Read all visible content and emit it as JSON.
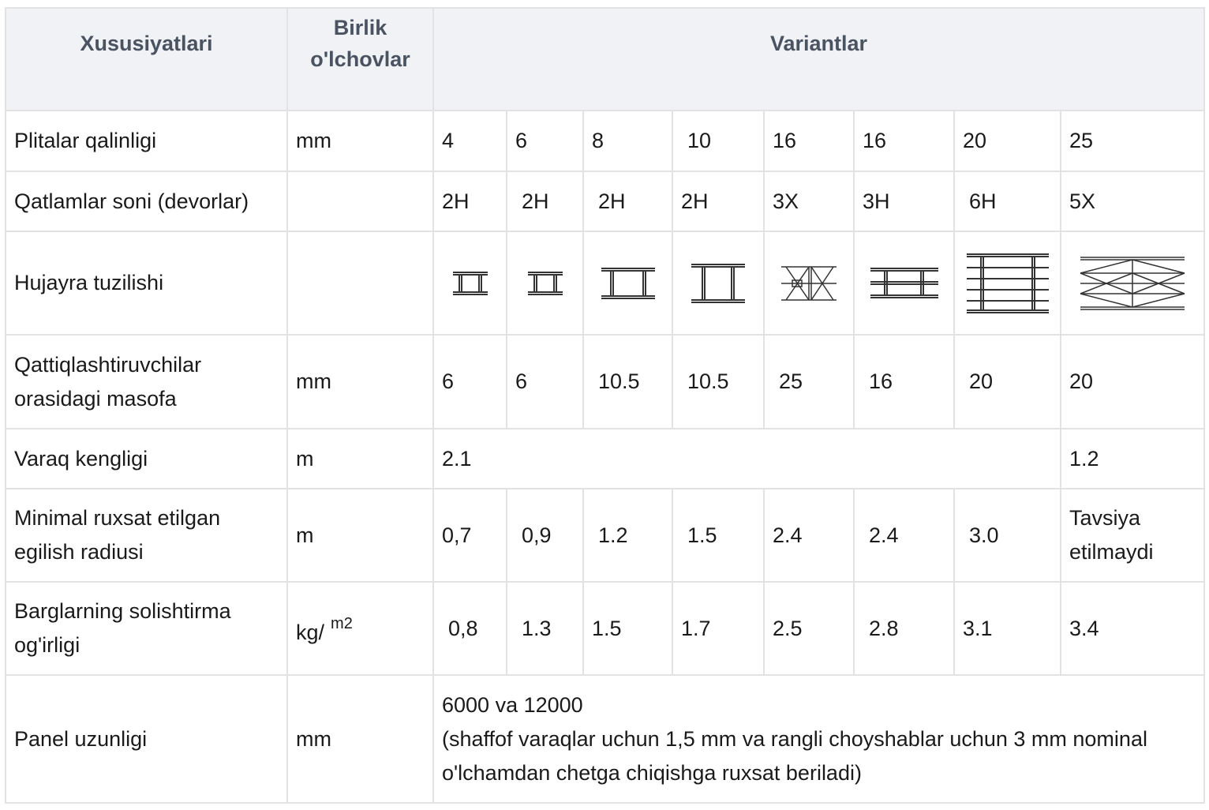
{
  "headers": {
    "property": "Xususiyatlari",
    "unit_line1": "Birlik",
    "unit_line2": "o'lchovlar",
    "variants": "Variantlar"
  },
  "rows": {
    "thickness": {
      "label": "Plitalar qalinligi",
      "unit": "mm",
      "values": [
        "4",
        "6",
        "8",
        "10",
        "16",
        "16",
        "20",
        "25"
      ]
    },
    "layers": {
      "label": "Qatlamlar soni (devorlar)",
      "unit": "",
      "values": [
        "2H",
        "2H",
        "2H",
        "2H",
        "3X",
        "3H",
        "6H",
        "5X"
      ]
    },
    "structure": {
      "label": "Hujayra tuzilishi",
      "unit": "",
      "icons": [
        "cell-2h-small-icon",
        "cell-2h-small-icon",
        "cell-2h-medium-icon",
        "cell-2h-large-icon",
        "cell-3x-icon",
        "cell-3h-icon",
        "cell-6h-icon",
        "cell-5x-icon"
      ]
    },
    "stiffener_spacing": {
      "label_line1": "Qattiqlashtiruvchilar",
      "label_line2": "orasidagi masofa",
      "unit": "mm",
      "values": [
        "6",
        "6",
        "10.5",
        "10.5",
        "25",
        "16",
        "20",
        "20"
      ]
    },
    "sheet_width": {
      "label": "Varaq kengligi",
      "unit": "m",
      "value_main": "2.1",
      "value_last": "1.2"
    },
    "bend_radius": {
      "label_line1": "Minimal ruxsat etilgan",
      "label_line2": "egilish radiusi",
      "unit": "m",
      "values": [
        "0,7",
        "0,9",
        "1.2",
        "1.5",
        "2.4",
        "2.4",
        "3.0"
      ],
      "last_line1": "Tavsiya",
      "last_line2": "etilmaydi"
    },
    "specific_weight": {
      "label_line1": "Barglarning solishtirma",
      "label_line2": "og'irligi",
      "unit": "kg/",
      "unit_sup": "m2",
      "values": [
        "0,8",
        "1.3",
        "1.5",
        "1.7",
        "2.5",
        "2.8",
        "3.1",
        "3.4"
      ]
    },
    "panel_length": {
      "label": "Panel uzunligi",
      "unit": "mm",
      "line1": "6000 va 12000",
      "line2": "(shaffof varaqlar uchun 1,5 mm va rangli choyshablar uchun 3 mm nominal",
      "line3": "o'lchamdan chetga chiqishga ruxsat beriladi)"
    }
  },
  "colors": {
    "header_bg": "#f1f2f5",
    "header_text": "#4a5361",
    "border": "#e2e2e2",
    "icon_stroke": "#333333"
  }
}
